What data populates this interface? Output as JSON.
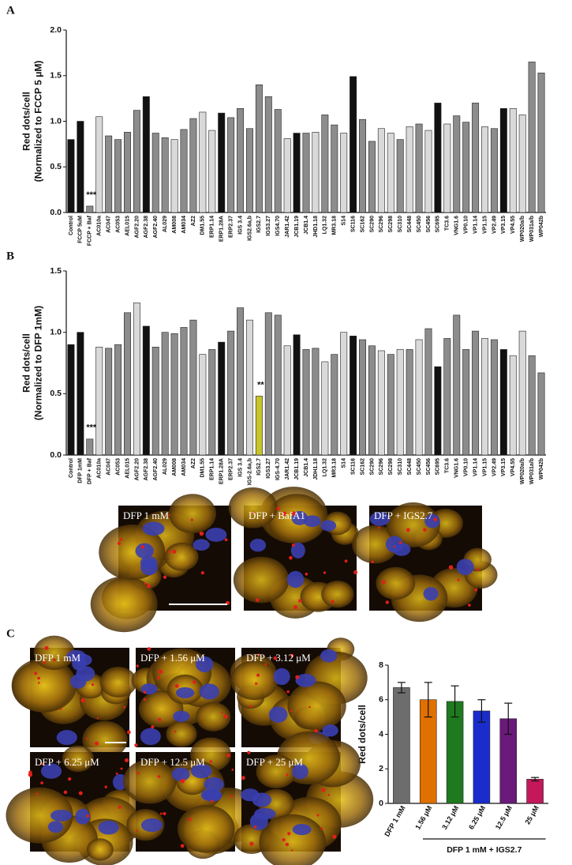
{
  "chart_data": [
    {
      "type": "bar",
      "panel": "A",
      "ylabel": [
        "Red dots/cell",
        "(Normalized to FCCP 5 μM)"
      ],
      "categories": [
        "Control",
        "FCCP 5uM",
        "FCCP + Baf",
        "AC010a",
        "AC047",
        "AC053",
        "AEL015",
        "AGF2.20",
        "AGF2.38",
        "AGF2.40",
        "AL029",
        "AM008",
        "AM034",
        "AZ2",
        "DM1.55",
        "ERP1.14",
        "ERP1.28A",
        "ERP2.37",
        "IGS 3.4",
        "IGS2.6a,b",
        "IGS2.7",
        "IGS3.27",
        "IGS4.70",
        "JAR1.42",
        "JCB1.19",
        "JCB1.4",
        "JHD1.18",
        "LQ1.32",
        "MR3.18",
        "S14",
        "SC116",
        "SC162",
        "SC290",
        "SC296",
        "SC298",
        "SC310",
        "SC448",
        "SC450",
        "SC456",
        "SC695",
        "TC3.6",
        "VNG1.6",
        "VP0.10",
        "VP1.14",
        "VP1.15",
        "VP2.49",
        "VP3.15",
        "VP4.55",
        "WP020a/b",
        "WP031a/b",
        "WP042b"
      ],
      "values": [
        0.8,
        1.0,
        0.07,
        1.05,
        0.84,
        0.8,
        0.88,
        1.12,
        1.27,
        0.87,
        0.82,
        0.8,
        0.91,
        1.03,
        1.1,
        0.9,
        1.09,
        1.04,
        1.14,
        0.92,
        1.4,
        1.27,
        1.13,
        0.81,
        0.87,
        0.87,
        0.88,
        1.07,
        0.96,
        0.87,
        1.49,
        1.02,
        0.78,
        0.92,
        0.87,
        0.8,
        0.94,
        0.97,
        0.9,
        1.2,
        0.97,
        1.06,
        0.99,
        1.2,
        0.94,
        0.92,
        1.14,
        1.14,
        1.07,
        1.65,
        1.53
      ],
      "colors": [
        "#111111",
        "#111111",
        "#8c8c8c",
        "#d9d9d9",
        "#8c8c8c",
        "#8c8c8c",
        "#8c8c8c",
        "#8c8c8c",
        "#111111",
        "#8c8c8c",
        "#8c8c8c",
        "#d9d9d9",
        "#8c8c8c",
        "#8c8c8c",
        "#d9d9d9",
        "#d9d9d9",
        "#111111",
        "#8c8c8c",
        "#8c8c8c",
        "#8c8c8c",
        "#8c8c8c",
        "#8c8c8c",
        "#8c8c8c",
        "#d9d9d9",
        "#111111",
        "#8c8c8c",
        "#d9d9d9",
        "#8c8c8c",
        "#8c8c8c",
        "#d9d9d9",
        "#111111",
        "#8c8c8c",
        "#8c8c8c",
        "#d9d9d9",
        "#d9d9d9",
        "#8c8c8c",
        "#d9d9d9",
        "#8c8c8c",
        "#d9d9d9",
        "#111111",
        "#d9d9d9",
        "#8c8c8c",
        "#8c8c8c",
        "#8c8c8c",
        "#d9d9d9",
        "#8c8c8c",
        "#111111",
        "#d9d9d9",
        "#d9d9d9",
        "#8c8c8c",
        "#8c8c8c"
      ],
      "annotations": [
        {
          "text": "***",
          "category": "FCCP + Baf"
        }
      ],
      "ylim": [
        0,
        2
      ],
      "yticks": [
        {
          "value": 0,
          "label": "0.0"
        },
        0.5,
        {
          "value": 1,
          "label": "1.0"
        },
        1.5,
        {
          "value": 2,
          "label": "2.0"
        }
      ]
    },
    {
      "type": "bar",
      "panel": "B",
      "ylabel": [
        "Red dots/cell",
        "(Normalized to DFP 1mM)"
      ],
      "categories": [
        "Control",
        "DFP 1mM",
        "DFP + Baf",
        "AC010a",
        "AC047",
        "AC053",
        "AEL015",
        "AGF2.20",
        "AGF2.38",
        "AGF2.40",
        "AL029",
        "AM008",
        "AM034",
        "AZ2",
        "DM1.55",
        "ERP1.14",
        "ERP1.28A",
        "ERP2.37",
        "IGS 3.4",
        "IGS-2.6a,b",
        "IGS2.7",
        "IGS3.27",
        "IGS-4.70",
        "JAR1.42",
        "JCB1.19",
        "JCB1.4",
        "JDH1.18",
        "LQ1.32",
        "MR3.18",
        "S14",
        "SC116",
        "SC162",
        "SC290",
        "SC296",
        "SC298",
        "SC310",
        "SC448",
        "SC450",
        "SC456",
        "SC695",
        "TC3.6",
        "VNG1.6",
        "VP0.10",
        "VP1.14",
        "VP1.15",
        "VP2.49",
        "VP3.15",
        "VP4.55",
        "WP020a/b",
        "WP031a/b",
        "WP042b"
      ],
      "values": [
        0.9,
        1.0,
        0.13,
        0.88,
        0.87,
        0.9,
        1.16,
        1.24,
        1.05,
        0.88,
        1.0,
        0.99,
        1.04,
        1.1,
        0.82,
        0.86,
        0.92,
        1.01,
        1.2,
        1.1,
        0.48,
        1.16,
        1.14,
        0.89,
        0.98,
        0.86,
        0.87,
        0.76,
        0.82,
        1.0,
        0.97,
        0.94,
        0.89,
        0.85,
        0.82,
        0.86,
        0.86,
        0.94,
        1.03,
        0.72,
        0.95,
        1.14,
        0.86,
        1.01,
        0.95,
        0.94,
        0.86,
        0.81,
        1.01,
        0.81,
        0.67
      ],
      "colors": [
        "#111111",
        "#111111",
        "#8c8c8c",
        "#d9d9d9",
        "#8c8c8c",
        "#8c8c8c",
        "#8c8c8c",
        "#d9d9d9",
        "#111111",
        "#8c8c8c",
        "#8c8c8c",
        "#8c8c8c",
        "#8c8c8c",
        "#8c8c8c",
        "#d9d9d9",
        "#8c8c8c",
        "#111111",
        "#8c8c8c",
        "#8c8c8c",
        "#d9d9d9",
        "#c9c42a",
        "#8c8c8c",
        "#8c8c8c",
        "#d9d9d9",
        "#111111",
        "#8c8c8c",
        "#8c8c8c",
        "#d9d9d9",
        "#8c8c8c",
        "#d9d9d9",
        "#111111",
        "#8c8c8c",
        "#8c8c8c",
        "#d9d9d9",
        "#8c8c8c",
        "#d9d9d9",
        "#8c8c8c",
        "#d9d9d9",
        "#8c8c8c",
        "#111111",
        "#8c8c8c",
        "#8c8c8c",
        "#8c8c8c",
        "#8c8c8c",
        "#d9d9d9",
        "#8c8c8c",
        "#111111",
        "#d9d9d9",
        "#d9d9d9",
        "#8c8c8c",
        "#8c8c8c"
      ],
      "annotations": [
        {
          "text": "***",
          "category": "DFP + Baf"
        },
        {
          "text": "**",
          "category": "IGS2.7"
        }
      ],
      "ylim": [
        0,
        1.5
      ],
      "yticks": [
        {
          "value": 0,
          "label": "0.0"
        },
        0.5,
        {
          "value": 1,
          "label": "1.0"
        },
        1.5
      ]
    },
    {
      "type": "bar",
      "panel": "C",
      "ylabel": [
        "Red dots/cell"
      ],
      "categories": [
        "DFP 1 mM",
        "1.56 μM",
        "3.12 μM",
        "6.25 μM",
        "12.5 μM",
        "25 μM"
      ],
      "values": [
        6.7,
        6.0,
        5.9,
        5.35,
        4.9,
        1.4
      ],
      "errors": [
        0.3,
        1.0,
        0.9,
        0.65,
        0.9,
        0.1
      ],
      "colors": [
        "#6d6d6d",
        "#e07000",
        "#1f7a1f",
        "#1a2ccc",
        "#6a1a7a",
        "#c4185a"
      ],
      "group_label": "DFP 1 mM + IGS2.7",
      "ylim": [
        0,
        8
      ],
      "yticks": [
        0,
        2,
        4,
        6,
        8
      ]
    }
  ],
  "micrographs_b": [
    "DFP 1 mM",
    "DFP + BafA1",
    "DFP + IGS2.7"
  ],
  "micrographs_c": [
    "DFP 1 mM",
    "DFP + 1.56 μM",
    "DFP + 3.12 μM",
    "DFP + 6.25 μM",
    "DFP + 12.5 μM",
    "DFP + 25 μM"
  ]
}
